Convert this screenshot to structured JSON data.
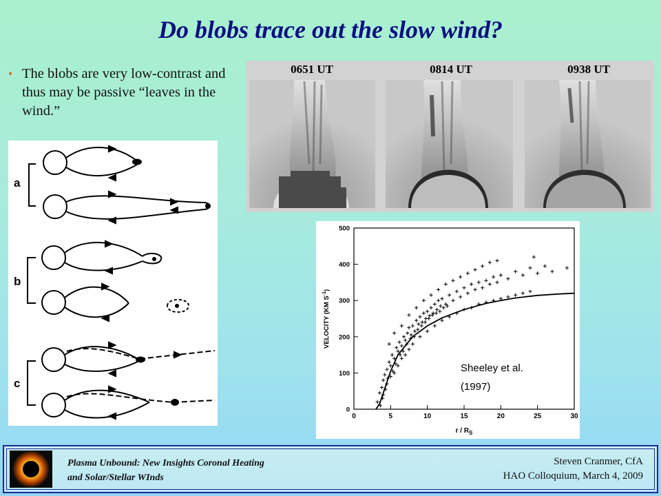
{
  "slide": {
    "title": "Do blobs trace out the slow wind?",
    "bullet": "The blobs are very low-contrast and thus may be passive “leaves in the wind.”"
  },
  "schematic": {
    "labels": [
      "a",
      "b",
      "c"
    ]
  },
  "image_sequence": {
    "times": [
      "0651 UT",
      "0814 UT",
      "0938 UT"
    ]
  },
  "chart_data": {
    "type": "scatter",
    "title": "",
    "xlabel": "r / R",
    "xlabel_subscript": "S",
    "ylabel": "VELOCITY (KM S",
    "ylabel_superscript": "-1",
    "ylabel_close": ")",
    "xlim": [
      0,
      30
    ],
    "ylim": [
      0,
      500
    ],
    "x_ticks": [
      0,
      5,
      10,
      15,
      20,
      25,
      30
    ],
    "y_ticks": [
      0,
      100,
      200,
      300,
      400,
      500
    ],
    "annotation": "Sheeley et al. (1997)",
    "annotation_lines": [
      "Sheeley et al.",
      "(1997)"
    ],
    "series": [
      {
        "marker": "plus",
        "points": [
          [
            3.2,
            20
          ],
          [
            3.5,
            45
          ],
          [
            3.8,
            60
          ],
          [
            4.0,
            80
          ],
          [
            4.2,
            95
          ],
          [
            4.5,
            110
          ],
          [
            4.8,
            130
          ],
          [
            5.0,
            120
          ],
          [
            5.2,
            150
          ],
          [
            5.5,
            140
          ],
          [
            5.8,
            170
          ],
          [
            6.0,
            160
          ],
          [
            6.2,
            185
          ],
          [
            6.5,
            175
          ],
          [
            6.8,
            200
          ],
          [
            7.0,
            190
          ],
          [
            7.3,
            210
          ],
          [
            7.5,
            225
          ],
          [
            7.8,
            205
          ],
          [
            8.0,
            230
          ],
          [
            8.3,
            215
          ],
          [
            8.5,
            245
          ],
          [
            8.8,
            235
          ],
          [
            9.0,
            255
          ],
          [
            9.3,
            240
          ],
          [
            9.5,
            265
          ],
          [
            9.8,
            250
          ],
          [
            10.0,
            270
          ],
          [
            10.3,
            258
          ],
          [
            10.5,
            280
          ],
          [
            10.8,
            265
          ],
          [
            11.0,
            290
          ],
          [
            11.3,
            275
          ],
          [
            11.5,
            300
          ],
          [
            11.8,
            285
          ],
          [
            12.0,
            305
          ],
          [
            12.5,
            290
          ],
          [
            13.0,
            315
          ],
          [
            13.5,
            300
          ],
          [
            14.0,
            325
          ],
          [
            14.5,
            310
          ],
          [
            15.0,
            335
          ],
          [
            15.5,
            320
          ],
          [
            16.0,
            345
          ],
          [
            16.5,
            330
          ],
          [
            17.0,
            350
          ],
          [
            17.5,
            335
          ],
          [
            18.0,
            355
          ],
          [
            18.5,
            345
          ],
          [
            19.0,
            365
          ],
          [
            19.5,
            350
          ],
          [
            20.0,
            370
          ],
          [
            21.0,
            360
          ],
          [
            22.0,
            380
          ],
          [
            23.0,
            370
          ],
          [
            24.0,
            390
          ],
          [
            25.0,
            375
          ],
          [
            26.0,
            395
          ],
          [
            27.0,
            380
          ],
          [
            29.0,
            390
          ],
          [
            4.0,
            40
          ],
          [
            4.5,
            70
          ],
          [
            5.0,
            90
          ],
          [
            5.5,
            100
          ],
          [
            6.0,
            120
          ],
          [
            6.5,
            140
          ],
          [
            7.0,
            150
          ],
          [
            7.5,
            165
          ],
          [
            8.0,
            180
          ],
          [
            9.0,
            200
          ],
          [
            10.0,
            215
          ],
          [
            11.0,
            230
          ],
          [
            12.0,
            245
          ],
          [
            13.0,
            255
          ],
          [
            14.0,
            265
          ],
          [
            15.0,
            275
          ],
          [
            16.0,
            280
          ],
          [
            17.0,
            290
          ],
          [
            18.0,
            295
          ],
          [
            19.0,
            300
          ],
          [
            20.0,
            305
          ],
          [
            21.0,
            310
          ],
          [
            22.0,
            315
          ],
          [
            23.0,
            320
          ],
          [
            24.0,
            325
          ],
          [
            4.8,
            180
          ],
          [
            5.5,
            210
          ],
          [
            6.5,
            230
          ],
          [
            7.5,
            260
          ],
          [
            8.5,
            280
          ],
          [
            9.5,
            300
          ],
          [
            10.5,
            315
          ],
          [
            11.5,
            330
          ],
          [
            12.5,
            345
          ],
          [
            13.5,
            355
          ],
          [
            14.5,
            365
          ],
          [
            15.5,
            375
          ],
          [
            16.5,
            385
          ],
          [
            17.5,
            395
          ],
          [
            18.5,
            405
          ],
          [
            19.5,
            410
          ],
          [
            24.5,
            420
          ],
          [
            3.6,
            10
          ],
          [
            3.9,
            30
          ],
          [
            4.3,
            55
          ],
          [
            4.6,
            85
          ],
          [
            5.3,
            105
          ],
          [
            5.7,
            125
          ],
          [
            6.3,
            150
          ],
          [
            6.7,
            160
          ],
          [
            7.2,
            180
          ],
          [
            7.7,
            195
          ],
          [
            8.2,
            200
          ],
          [
            8.7,
            220
          ],
          [
            9.2,
            230
          ],
          [
            9.7,
            240
          ],
          [
            10.2,
            250
          ],
          [
            10.7,
            260
          ],
          [
            11.2,
            265
          ],
          [
            11.7,
            270
          ],
          [
            12.2,
            280
          ],
          [
            12.7,
            285
          ]
        ]
      },
      {
        "name": "",
        "type": "line",
        "x": [
          3,
          3.5,
          4,
          5,
          6,
          8,
          10,
          12,
          15,
          18,
          20,
          22,
          25,
          28,
          30
        ],
        "y": [
          0,
          15,
          45,
          105,
          150,
          200,
          230,
          252,
          275,
          292,
          300,
          307,
          314,
          318,
          320
        ]
      }
    ]
  },
  "footer": {
    "left_line1": "Plasma Unbound:  New Insights Coronal Heating",
    "left_line2": "and Solar/Stellar WInds",
    "right_line1": "Steven Cranmer,  CfA",
    "right_line2": "HAO Colloquium, March 4, 2009"
  }
}
